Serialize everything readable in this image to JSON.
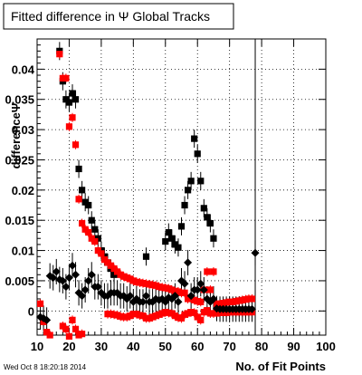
{
  "chart_data": {
    "type": "scatter",
    "title": "Fitted difference in Ψ   Global Tracks",
    "xlabel": "No. of Fit Points",
    "ylabel": "differenceΨ",
    "footer": "Wed Oct  8 18:20:18 2014",
    "xlim": [
      10,
      100
    ],
    "ylim": [
      -0.004,
      0.045
    ],
    "xticks": [
      10,
      20,
      30,
      40,
      50,
      60,
      70,
      80,
      90,
      100
    ],
    "yticks": [
      0,
      0.005,
      0.01,
      0.015,
      0.02,
      0.025,
      0.03,
      0.035,
      0.04
    ],
    "ytick_labels": [
      "0",
      "0.005",
      "0.01",
      "0.015",
      "0.02",
      "0.025",
      "0.03",
      "0.035",
      "0.04"
    ],
    "grid": true,
    "reference_line_x": 78,
    "colors": {
      "black": "#000000",
      "red": "#ff0000"
    },
    "series": [
      {
        "color": "#000000",
        "marker": "square",
        "x": [
          17,
          18,
          19,
          20,
          21,
          22,
          23,
          24,
          25,
          26,
          27,
          28,
          29,
          30,
          31,
          32,
          33,
          34,
          44,
          50,
          51,
          52,
          53,
          54,
          55,
          56,
          57,
          58,
          59,
          60,
          61,
          62,
          63,
          64,
          65
        ],
        "y": [
          0.043,
          0.038,
          0.035,
          0.0345,
          0.036,
          0.035,
          0.0235,
          0.02,
          0.018,
          0.0175,
          0.015,
          0.0135,
          0.012,
          0.01,
          0.009,
          0.008,
          0.007,
          0.006,
          0.009,
          0.0115,
          0.013,
          0.012,
          0.011,
          0.0105,
          0.014,
          0.0175,
          0.02,
          0.0215,
          0.0285,
          0.026,
          0.0215,
          0.017,
          0.0155,
          0.0145,
          0.012
        ]
      },
      {
        "color": "#ff0000",
        "marker": "square",
        "x": [
          17,
          18,
          19,
          20,
          21,
          22,
          23,
          24,
          25,
          26,
          27,
          28,
          29,
          30,
          31,
          32,
          33,
          34,
          35,
          36,
          37,
          38,
          39,
          40,
          41,
          42,
          43,
          44,
          45,
          46,
          47,
          48,
          49,
          50,
          51,
          52,
          53,
          54,
          55,
          56,
          57,
          58,
          59,
          60,
          61,
          62,
          63,
          64,
          65,
          66,
          67,
          68,
          69,
          70,
          71,
          72,
          73,
          74,
          75,
          76,
          77
        ],
        "y": [
          0.0425,
          0.0385,
          0.0385,
          0.0305,
          0.032,
          0.0275,
          0.0185,
          0.0145,
          0.0135,
          0.013,
          0.012,
          0.0115,
          0.01,
          0.0095,
          0.0085,
          0.008,
          0.0075,
          0.007,
          0.0065,
          0.006,
          0.0057,
          0.0055,
          0.0053,
          0.005,
          0.0048,
          0.0047,
          0.0046,
          0.0045,
          0.0044,
          0.0043,
          0.0042,
          0.004,
          0.0039,
          0.0038,
          0.0037,
          0.0035,
          0.0033,
          0.0032,
          0.003,
          0.003,
          0.002,
          0.0022,
          0.0018,
          0.0016,
          0.0015,
          0.0035,
          0.0065,
          0.0035,
          0.0065,
          0.0012,
          0.0012,
          0.0013,
          0.0014,
          0.0015,
          0.0015,
          0.0016,
          0.0017,
          0.0018,
          0.0019,
          0.002,
          0.002
        ]
      },
      {
        "color": "#ff0000",
        "marker": "square",
        "x": [
          11,
          12,
          13,
          14,
          18,
          19,
          20,
          21,
          22,
          23,
          24,
          32,
          33,
          34,
          35,
          36,
          37,
          38,
          39,
          40,
          41,
          42,
          43,
          44,
          45,
          46,
          47,
          48,
          49,
          50,
          51,
          52,
          53,
          54,
          55,
          56,
          57,
          58,
          59,
          60,
          61,
          62,
          63,
          64,
          65,
          66,
          67,
          68,
          69,
          70,
          71,
          72,
          73,
          74,
          75,
          76,
          77
        ],
        "y": [
          0.0012,
          -0.0018,
          -0.0035,
          -0.004,
          -0.0025,
          -0.003,
          -0.0042,
          -0.0015,
          -0.003,
          -0.004,
          -0.0038,
          -0.0005,
          -0.0005,
          -0.0006,
          -0.0007,
          -0.0009,
          -0.001,
          -0.001,
          -0.0008,
          -0.0005,
          -0.0005,
          -0.0007,
          -0.0008,
          -0.0012,
          -0.0012,
          -0.001,
          -0.0008,
          -0.0006,
          -0.0004,
          -0.0002,
          -0.0003,
          -0.0004,
          -0.0008,
          -0.0011,
          -0.0012,
          -0.0006,
          -0.0004,
          -0.0002,
          -0.0003,
          -0.001,
          -0.0015,
          -0.0002,
          0.0001,
          -0.0004,
          -0.0004,
          -0.0004,
          -0.0003,
          -0.0003,
          -0.0003,
          -0.0002,
          -0.0002,
          -0.0002,
          -0.0002,
          -0.0002,
          -0.0002,
          -0.0002,
          -0.0002
        ]
      },
      {
        "color": "#000000",
        "marker": "diamond",
        "x": [
          11,
          12,
          13,
          14,
          15,
          16,
          17,
          18,
          19,
          20,
          21,
          22,
          23,
          24,
          25,
          26,
          27,
          28,
          29,
          30,
          31,
          32,
          33,
          34,
          35,
          36,
          37,
          38,
          39,
          40,
          41,
          42,
          43,
          44,
          45,
          46,
          47,
          48,
          49,
          50,
          51,
          52,
          53,
          54,
          55,
          56,
          57,
          58,
          59,
          60,
          61,
          62,
          63,
          64,
          65,
          66,
          67,
          68,
          69,
          70,
          71,
          72,
          73,
          74,
          75,
          76,
          77,
          78
        ],
        "y": [
          -0.001,
          -0.0012,
          -0.0015,
          0.0058,
          0.0055,
          0.0065,
          0.0052,
          0.005,
          0.004,
          0.0055,
          0.0075,
          0.006,
          0.003,
          0.0025,
          0.0035,
          0.005,
          0.006,
          0.004,
          0.004,
          0.003,
          0.0025,
          0.0025,
          0.003,
          0.003,
          0.003,
          0.0025,
          0.0025,
          0.002,
          0.0025,
          0.0015,
          0.002,
          0.0015,
          0.0015,
          0.0025,
          0.0015,
          0.0015,
          0.002,
          0.0018,
          0.002,
          0.0015,
          0.0022,
          0.002,
          0.0025,
          0.0015,
          0.005,
          0.0045,
          0.008,
          0.0025,
          0.0035,
          0.0035,
          0.0045,
          0.0035,
          0.002,
          0.0015,
          0.002,
          0.0004,
          0.0003,
          0.0003,
          0.0003,
          0.0003,
          0.0003,
          0.0003,
          0.0003,
          0.0003,
          0.0003,
          0.0003,
          0.0003,
          0.0096
        ]
      }
    ]
  }
}
